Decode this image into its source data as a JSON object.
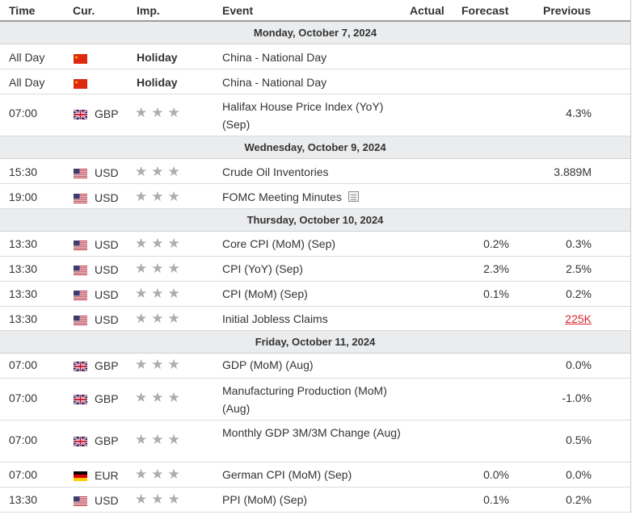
{
  "columns": {
    "time": "Time",
    "currency": "Cur.",
    "importance": "Imp.",
    "event": "Event",
    "actual": "Actual",
    "forecast": "Forecast",
    "previous": "Previous"
  },
  "days": [
    {
      "date": "Monday, October 7, 2024",
      "events": [
        {
          "time": "All Day",
          "flag": "cn-flag",
          "currency": "",
          "importance_label": "Holiday",
          "event": "China - National Day",
          "forecast": "",
          "previous": ""
        },
        {
          "time": "All Day",
          "flag": "cn-flag",
          "currency": "",
          "importance_label": "Holiday",
          "event": "China - National Day",
          "forecast": "",
          "previous": ""
        },
        {
          "time": "07:00",
          "flag": "gb-flag",
          "currency": "GBP",
          "stars": 3,
          "event": "Halifax House Price Index (YoY) (Sep)",
          "forecast": "",
          "previous": "4.3%"
        }
      ]
    },
    {
      "date": "Wednesday, October 9, 2024",
      "events": [
        {
          "time": "15:30",
          "flag": "us-flag",
          "currency": "USD",
          "stars": 3,
          "event": "Crude Oil Inventories",
          "forecast": "",
          "previous": "3.889M"
        },
        {
          "time": "19:00",
          "flag": "us-flag",
          "currency": "USD",
          "stars": 3,
          "event": "FOMC Meeting Minutes",
          "forecast": "",
          "previous": "",
          "icon": "document-icon"
        }
      ]
    },
    {
      "date": "Thursday, October 10, 2024",
      "events": [
        {
          "time": "13:30",
          "flag": "us-flag",
          "currency": "USD",
          "stars": 3,
          "event": "Core CPI (MoM) (Sep)",
          "forecast": "0.2%",
          "previous": "0.3%"
        },
        {
          "time": "13:30",
          "flag": "us-flag",
          "currency": "USD",
          "stars": 3,
          "event": "CPI (YoY) (Sep)",
          "forecast": "2.3%",
          "previous": "2.5%"
        },
        {
          "time": "13:30",
          "flag": "us-flag",
          "currency": "USD",
          "stars": 3,
          "event": "CPI (MoM) (Sep)",
          "forecast": "0.1%",
          "previous": "0.2%"
        },
        {
          "time": "13:30",
          "flag": "us-flag",
          "currency": "USD",
          "stars": 3,
          "event": "Initial Jobless Claims",
          "forecast": "",
          "previous": "225K",
          "previous_color": "#d9262e"
        }
      ]
    },
    {
      "date": "Friday, October 11, 2024",
      "events": [
        {
          "time": "07:00",
          "flag": "gb-flag",
          "currency": "GBP",
          "stars": 3,
          "event": "GDP (MoM) (Aug)",
          "forecast": "",
          "previous": "0.0%"
        },
        {
          "time": "07:00",
          "flag": "gb-flag",
          "currency": "GBP",
          "stars": 3,
          "event": "Manufacturing Production (MoM) (Aug)",
          "forecast": "",
          "previous": "-1.0%"
        },
        {
          "time": "07:00",
          "flag": "gb-flag",
          "currency": "GBP",
          "stars": 3,
          "event": "Monthly GDP 3M/3M Change (Aug)",
          "forecast": "",
          "previous": "0.5%"
        },
        {
          "time": "07:00",
          "flag": "de-flag",
          "currency": "EUR",
          "stars": 3,
          "event": "German CPI (MoM) (Sep)",
          "forecast": "0.0%",
          "previous": "0.0%"
        },
        {
          "time": "13:30",
          "flag": "us-flag",
          "currency": "USD",
          "stars": 3,
          "event": "PPI (MoM) (Sep)",
          "forecast": "0.1%",
          "previous": "0.2%"
        }
      ]
    }
  ]
}
